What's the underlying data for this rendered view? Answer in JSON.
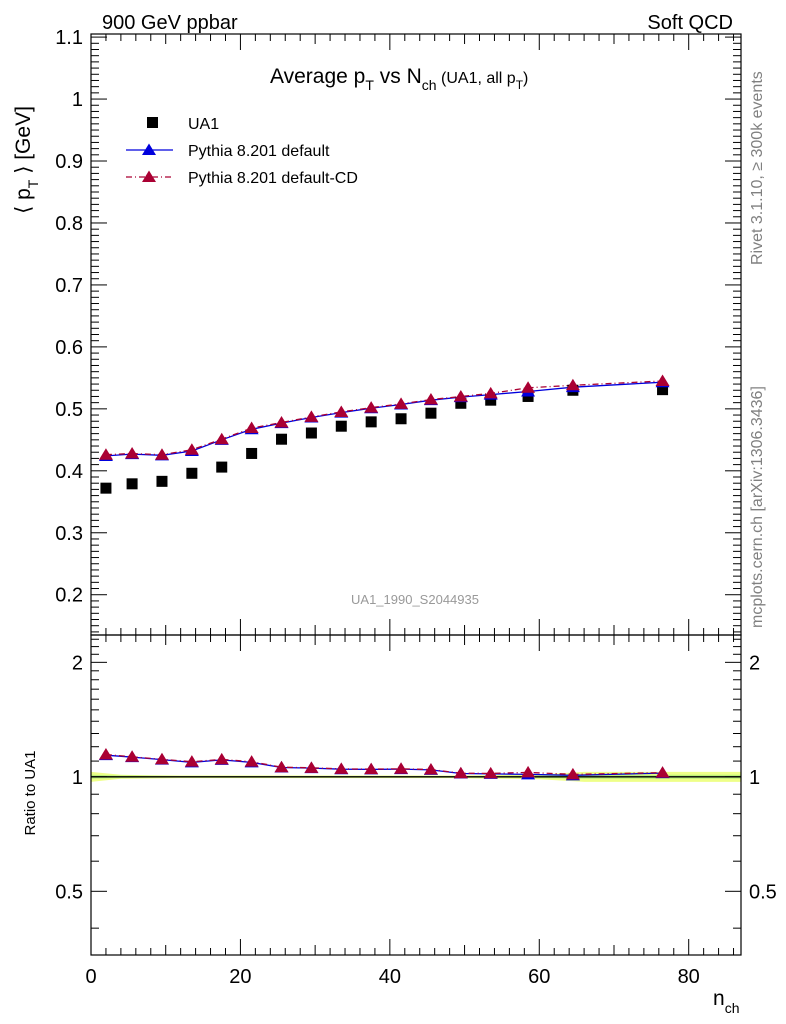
{
  "header": {
    "left": "900 GeV ppbar",
    "right": "Soft QCD"
  },
  "side_labels": {
    "version": "Rivet 3.1.10, ≥ 300k events",
    "source": "mcplots.cern.ch [arXiv:1306.3436]"
  },
  "chart_data": [
    {
      "type": "scatter",
      "title": {
        "main": "Average p",
        "main_sub": "T",
        "mid": " vs N",
        "mid_sub": "ch",
        "small": " (UA1, all p",
        "small_sub": "T",
        "small_end": ")"
      },
      "ylabel": {
        "open": "⟨ p",
        "sub": "T",
        "close": " ⟩ [GeV]"
      },
      "xlabel": {
        "main": "n",
        "sub": "ch"
      },
      "watermark": "UA1_1990_S2044935",
      "xlim": [
        0,
        87
      ],
      "ylim": [
        0.135,
        1.105
      ],
      "yticks": [
        0.2,
        0.3,
        0.4,
        0.5,
        0.6,
        0.7,
        0.8,
        0.9,
        1,
        1.1
      ],
      "ytick_labels": [
        "0.2",
        "0.3",
        "0.4",
        "0.5",
        "0.6",
        "0.7",
        "0.8",
        "0.9",
        "1",
        "1.1"
      ],
      "legend_position": "top-left",
      "series": [
        {
          "name": "UA1",
          "color": "#000000",
          "marker": "square",
          "x": [
            2,
            5.5,
            9.5,
            13.5,
            17.5,
            21.5,
            25.5,
            29.5,
            33.5,
            37.5,
            41.5,
            45.5,
            49.5,
            53.5,
            58.5,
            64.5,
            76.5
          ],
          "y": [
            0.372,
            0.379,
            0.383,
            0.396,
            0.406,
            0.428,
            0.451,
            0.461,
            0.472,
            0.479,
            0.484,
            0.493,
            0.509,
            0.514,
            0.52,
            0.53,
            0.531
          ]
        },
        {
          "name": "Pythia 8.201 default",
          "color": "#0000dd",
          "marker": "triangle",
          "line": "solid",
          "x": [
            2,
            5.5,
            9.5,
            13.5,
            17.5,
            21.5,
            25.5,
            29.5,
            33.5,
            37.5,
            41.5,
            45.5,
            49.5,
            53.5,
            58.5,
            64.5,
            76.5
          ],
          "y": [
            0.424,
            0.427,
            0.425,
            0.432,
            0.45,
            0.467,
            0.477,
            0.486,
            0.494,
            0.501,
            0.507,
            0.514,
            0.519,
            0.523,
            0.528,
            0.535,
            0.543
          ]
        },
        {
          "name": "Pythia 8.201 default-CD",
          "color": "#aa0033",
          "marker": "triangle",
          "line": "dashdot",
          "x": [
            2,
            5.5,
            9.5,
            13.5,
            17.5,
            21.5,
            25.5,
            29.5,
            33.5,
            37.5,
            41.5,
            45.5,
            49.5,
            53.5,
            58.5,
            64.5,
            76.5
          ],
          "y": [
            0.426,
            0.428,
            0.426,
            0.434,
            0.451,
            0.469,
            0.478,
            0.487,
            0.495,
            0.502,
            0.508,
            0.515,
            0.52,
            0.525,
            0.534,
            0.538,
            0.545
          ]
        }
      ]
    },
    {
      "type": "line",
      "ylabel": "Ratio to UA1",
      "xlim": [
        0,
        87
      ],
      "ylim": [
        0.34,
        2.36
      ],
      "xticks": [
        0,
        20,
        40,
        60,
        80
      ],
      "xtick_labels": [
        "0",
        "20",
        "40",
        "60",
        "80"
      ],
      "yticks": [
        0.5,
        1,
        2
      ],
      "ytick_labels": [
        "0.5",
        "1",
        "2"
      ],
      "reference_line": 1,
      "uncertainty_band": {
        "x": [
          0,
          4,
          8,
          12,
          16,
          20,
          24,
          28,
          32,
          36,
          40,
          44,
          48,
          52,
          56,
          60,
          66,
          72,
          87
        ],
        "inner": [
          0.012,
          0.008,
          0.006,
          0.005,
          0.005,
          0.005,
          0.005,
          0.005,
          0.005,
          0.005,
          0.005,
          0.005,
          0.005,
          0.005,
          0.006,
          0.008,
          0.012,
          0.012,
          0.012
        ],
        "outer": [
          0.03,
          0.012,
          0.01,
          0.008,
          0.008,
          0.008,
          0.008,
          0.008,
          0.008,
          0.008,
          0.008,
          0.008,
          0.008,
          0.01,
          0.012,
          0.015,
          0.03,
          0.03,
          0.03
        ]
      },
      "series": [
        {
          "name": "Pythia 8.201 default",
          "color": "#0000dd",
          "x": [
            2,
            5.5,
            9.5,
            13.5,
            17.5,
            21.5,
            25.5,
            29.5,
            33.5,
            37.5,
            41.5,
            45.5,
            49.5,
            53.5,
            58.5,
            64.5,
            76.5
          ],
          "y": [
            1.14,
            1.127,
            1.11,
            1.091,
            1.108,
            1.091,
            1.058,
            1.054,
            1.047,
            1.046,
            1.048,
            1.043,
            1.02,
            1.018,
            1.015,
            1.009,
            1.023
          ]
        },
        {
          "name": "Pythia 8.201 default-CD",
          "color": "#aa0033",
          "x": [
            2,
            5.5,
            9.5,
            13.5,
            17.5,
            21.5,
            25.5,
            29.5,
            33.5,
            37.5,
            41.5,
            45.5,
            49.5,
            53.5,
            58.5,
            64.5,
            76.5
          ],
          "y": [
            1.145,
            1.129,
            1.112,
            1.096,
            1.111,
            1.096,
            1.06,
            1.056,
            1.049,
            1.048,
            1.05,
            1.045,
            1.022,
            1.021,
            1.027,
            1.015,
            1.026
          ]
        }
      ]
    }
  ]
}
